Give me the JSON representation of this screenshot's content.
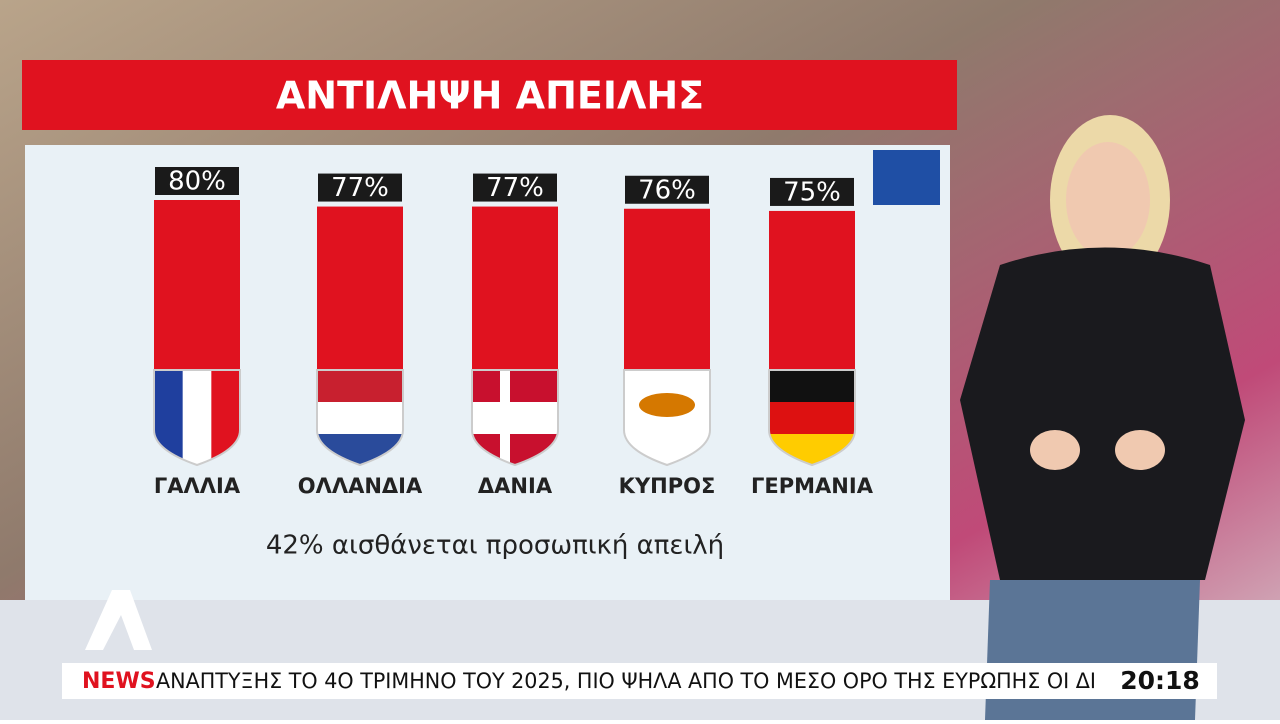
{
  "chart_data": {
    "type": "bar",
    "title": "ΑΝΤΙΛΗΨΗ ΑΠΕΙΛΗΣ",
    "categories": [
      "ΓΑΛΛΙΑ",
      "ΟΛΛΑΝΔΙΑ",
      "ΔΑΝΙΑ",
      "ΚΥΠΡΟΣ",
      "ΓΕΡΜΑΝΙΑ"
    ],
    "values": [
      80,
      77,
      77,
      76,
      75
    ],
    "value_labels": [
      "80%",
      "77%",
      "77%",
      "76%",
      "75%"
    ],
    "color": "#e0121f",
    "annotation": "42% αισθάνεται προσωπική απειλή"
  },
  "ticker": {
    "label": "NEWS",
    "text": "ΑΝΑΠΤΥΞΗΣ ΤΟ 4Ο ΤΡΙΜΗΝΟ ΤΟΥ 2025, ΠΙΟ ΨΗΛΑ ΑΠΟ ΤΟ ΜΕΣΟ ΟΡΟ ΤΗΣ ΕΥΡΩΠΗΣ ΟΙ ΔΙ",
    "time": "20:18"
  }
}
